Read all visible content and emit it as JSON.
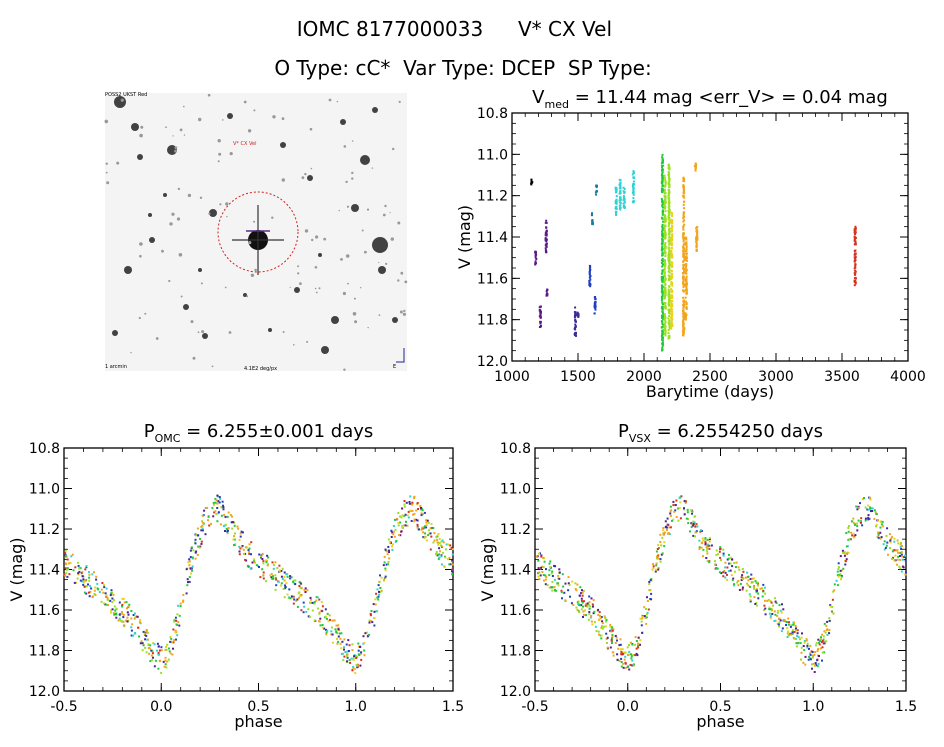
{
  "header": {
    "line1_id": "IOMC 8177000033",
    "line1_name": "V* CX Vel",
    "line2": "O Type: cC*  Var Type: DCEP  SP Type:"
  },
  "colors": {
    "purple": "#5a1a8a",
    "indigo": "#3a2a9a",
    "blue": "#1f3fc0",
    "teal": "#1a7aa6",
    "cyan": "#2fd3d3",
    "green": "#22c93a",
    "lime": "#9ae020",
    "yellow": "#e8d21a",
    "orange": "#f2a41c",
    "red": "#d8321e",
    "black": "#000000"
  },
  "image_panel": {
    "corner_top_left": "POSS2 UKST Red",
    "label_red": "V* CX Vel",
    "bottom_left": "1 arcmin",
    "bottom_center": "4.1E2 deg/px",
    "bottom_right": "E"
  },
  "chart_data": [
    {
      "id": "lightcurve",
      "type": "scatter",
      "title_main": "V",
      "title_sub": "med",
      "title_rest": " = 11.44 mag <err_V> = 0.04 mag",
      "xlabel": "Barytime (days)",
      "ylabel": "V (mag)",
      "xlim": [
        1000,
        4000
      ],
      "ylim": [
        12.0,
        10.8
      ],
      "xticks": [
        "1000",
        "1500",
        "2000",
        "2500",
        "3000",
        "3500",
        "4000"
      ],
      "yticks": [
        "10.8",
        "11.0",
        "11.2",
        "11.4",
        "11.6",
        "11.8",
        "12.0"
      ],
      "groups": [
        {
          "x": 1150,
          "ymin": 11.12,
          "ymax": 11.15,
          "color": "black"
        },
        {
          "x": 1180,
          "ymin": 11.47,
          "ymax": 11.54,
          "color": "purple"
        },
        {
          "x": 1215,
          "ymin": 11.72,
          "ymax": 11.84,
          "color": "purple"
        },
        {
          "x": 1260,
          "ymin": 11.32,
          "ymax": 11.48,
          "color": "purple"
        },
        {
          "x": 1265,
          "ymin": 11.65,
          "ymax": 11.69,
          "color": "purple"
        },
        {
          "x": 1480,
          "ymin": 11.74,
          "ymax": 11.88,
          "color": "indigo"
        },
        {
          "x": 1500,
          "ymin": 11.76,
          "ymax": 11.79,
          "color": "indigo"
        },
        {
          "x": 1590,
          "ymin": 11.53,
          "ymax": 11.64,
          "color": "blue"
        },
        {
          "x": 1610,
          "ymin": 11.28,
          "ymax": 11.34,
          "color": "teal"
        },
        {
          "x": 1630,
          "ymin": 11.69,
          "ymax": 11.78,
          "color": "blue"
        },
        {
          "x": 1640,
          "ymin": 11.15,
          "ymax": 11.2,
          "color": "teal"
        },
        {
          "x": 1790,
          "ymin": 11.16,
          "ymax": 11.3,
          "color": "cyan"
        },
        {
          "x": 1820,
          "ymin": 11.12,
          "ymax": 11.27,
          "color": "cyan"
        },
        {
          "x": 1850,
          "ymin": 11.16,
          "ymax": 11.26,
          "color": "cyan"
        },
        {
          "x": 1920,
          "ymin": 11.08,
          "ymax": 11.24,
          "color": "cyan"
        },
        {
          "x": 2140,
          "ymin": 11.0,
          "ymax": 11.95,
          "color": "green"
        },
        {
          "x": 2160,
          "ymin": 11.1,
          "ymax": 11.88,
          "color": "lime"
        },
        {
          "x": 2190,
          "ymin": 11.05,
          "ymax": 11.9,
          "color": "lime"
        },
        {
          "x": 2210,
          "ymin": 11.28,
          "ymax": 11.85,
          "color": "yellow"
        },
        {
          "x": 2300,
          "ymin": 11.1,
          "ymax": 11.88,
          "color": "orange"
        },
        {
          "x": 2320,
          "ymin": 11.4,
          "ymax": 11.8,
          "color": "orange"
        },
        {
          "x": 2390,
          "ymin": 11.04,
          "ymax": 11.09,
          "color": "orange"
        },
        {
          "x": 2400,
          "ymin": 11.33,
          "ymax": 11.47,
          "color": "orange"
        },
        {
          "x": 3600,
          "ymin": 11.35,
          "ymax": 11.64,
          "color": "red"
        }
      ]
    },
    {
      "id": "phased-omc",
      "type": "scatter",
      "title_main": "P",
      "title_sub": "OMC",
      "title_rest": " = 6.255±0.001 days",
      "xlabel": "phase",
      "ylabel": "V (mag)",
      "xlim": [
        -0.5,
        1.5
      ],
      "ylim": [
        12.0,
        10.8
      ],
      "xticks": [
        "-0.5",
        "0.0",
        "0.5",
        "1.0",
        "1.5"
      ],
      "yticks": [
        "10.8",
        "11.0",
        "11.2",
        "11.4",
        "11.6",
        "11.8",
        "12.0"
      ],
      "curve": {
        "phase": [
          0.0,
          0.05,
          0.1,
          0.15,
          0.2,
          0.25,
          0.3,
          0.35,
          0.4,
          0.45,
          0.5,
          0.55,
          0.6,
          0.65,
          0.7,
          0.75,
          0.8,
          0.85,
          0.9,
          0.95,
          1.0
        ],
        "mag": [
          11.85,
          11.78,
          11.6,
          11.38,
          11.22,
          11.12,
          11.1,
          11.18,
          11.26,
          11.32,
          11.36,
          11.4,
          11.44,
          11.48,
          11.52,
          11.56,
          11.6,
          11.66,
          11.73,
          11.8,
          11.85
        ]
      }
    },
    {
      "id": "phased-vsx",
      "type": "scatter",
      "title_main": "P",
      "title_sub": "VSX",
      "title_rest": " = 6.2554250 days",
      "xlabel": "phase",
      "ylabel": "V (mag)",
      "xlim": [
        -0.5,
        1.5
      ],
      "ylim": [
        12.0,
        10.8
      ],
      "xticks": [
        "-0.5",
        "0.0",
        "0.5",
        "1.0",
        "1.5"
      ],
      "yticks": [
        "10.8",
        "11.0",
        "11.2",
        "11.4",
        "11.6",
        "11.8",
        "12.0"
      ],
      "curve": {
        "phase": [
          0.0,
          0.05,
          0.1,
          0.15,
          0.2,
          0.25,
          0.3,
          0.35,
          0.4,
          0.45,
          0.5,
          0.55,
          0.6,
          0.65,
          0.7,
          0.75,
          0.8,
          0.85,
          0.9,
          0.95,
          1.0
        ],
        "mag": [
          11.85,
          11.78,
          11.6,
          11.38,
          11.22,
          11.12,
          11.1,
          11.18,
          11.26,
          11.32,
          11.36,
          11.4,
          11.44,
          11.48,
          11.52,
          11.56,
          11.6,
          11.66,
          11.73,
          11.8,
          11.85
        ]
      }
    }
  ]
}
